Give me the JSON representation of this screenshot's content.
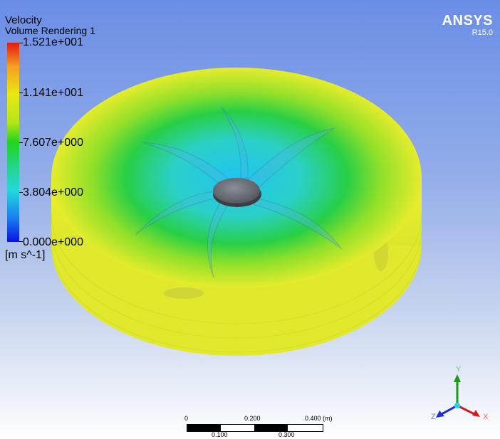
{
  "legend": {
    "title": "Velocity",
    "subtitle": "Volume Rendering 1",
    "ticks": [
      "1.521e+001",
      "1.141e+001",
      "7.607e+000",
      "3.804e+000",
      "0.000e+000"
    ],
    "units": "[m s^-1]",
    "colors": [
      "#e11b12",
      "#f4a020",
      "#e8e813",
      "#21d41f",
      "#22d9dc",
      "#1a7ef0",
      "#0a12e2"
    ]
  },
  "branding": {
    "product": "ANSYS",
    "release": "R15.0"
  },
  "scale": {
    "top_labels": [
      "0",
      "0.200",
      "0.400 (m)"
    ],
    "bottom_labels": [
      "0.100",
      "0.300"
    ]
  },
  "triad": {
    "x_label": "X",
    "y_label": "Y",
    "z_label": "Z"
  },
  "colors": {
    "background_top": "#6a8ee6",
    "background_bottom": "#ffffff",
    "outer_ring": "#e3ec2a",
    "mid_ring": "#35d23c",
    "inner": "#37cbe6",
    "hub": "#6b6f78"
  }
}
